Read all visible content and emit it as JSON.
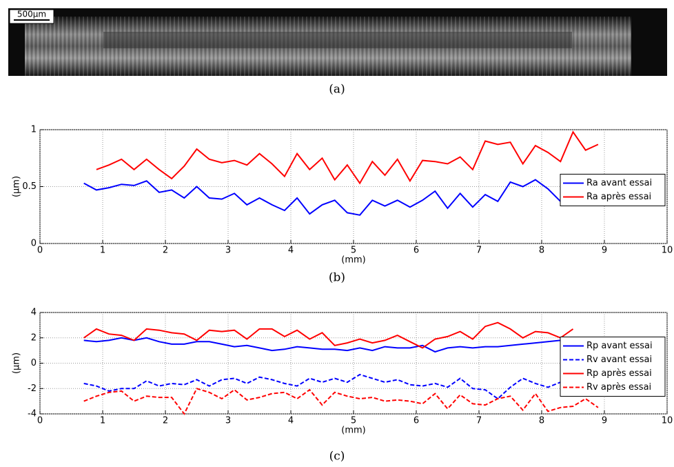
{
  "figure": {
    "scale_bar": "500µm",
    "captions": [
      "(a)",
      "(b)",
      "(c)"
    ]
  },
  "chart_data": [
    {
      "type": "line",
      "xlabel": "(mm)",
      "ylabel": "(µm)",
      "xlim": [
        0,
        10
      ],
      "ylim": [
        0,
        1
      ],
      "xticks": [
        0,
        1,
        2,
        3,
        4,
        5,
        6,
        7,
        8,
        9,
        10
      ],
      "yticks": [
        0,
        0.5,
        1
      ],
      "grid": true,
      "legend": "east",
      "x": [
        0.7,
        0.9,
        1.1,
        1.3,
        1.5,
        1.7,
        1.9,
        2.1,
        2.3,
        2.5,
        2.7,
        2.9,
        3.1,
        3.3,
        3.5,
        3.7,
        3.9,
        4.1,
        4.3,
        4.5,
        4.7,
        4.9,
        5.1,
        5.3,
        5.5,
        5.7,
        5.9,
        6.1,
        6.3,
        6.5,
        6.7,
        6.9,
        7.1,
        7.3,
        7.5,
        7.7,
        7.9,
        8.1,
        8.3,
        8.5,
        8.7,
        8.9
      ],
      "series": [
        {
          "name": "Ra avant essai",
          "color": "#0000ff",
          "dashed": false,
          "values": [
            0.53,
            0.47,
            0.49,
            0.52,
            0.51,
            0.55,
            0.45,
            0.47,
            0.4,
            0.5,
            0.4,
            0.39,
            0.44,
            0.34,
            0.4,
            0.34,
            0.29,
            0.4,
            0.26,
            0.34,
            0.38,
            0.27,
            0.25,
            0.38,
            0.33,
            0.38,
            0.32,
            0.38,
            0.46,
            0.31,
            0.44,
            0.32,
            0.43,
            0.37,
            0.54,
            0.5,
            0.56,
            0.48,
            0.37,
            null,
            null,
            null
          ]
        },
        {
          "name": "Ra après essai",
          "color": "#ff0000",
          "dashed": false,
          "values": [
            null,
            0.65,
            0.69,
            0.74,
            0.65,
            0.74,
            0.65,
            0.57,
            0.68,
            0.83,
            0.74,
            0.71,
            0.73,
            0.69,
            0.79,
            0.7,
            0.59,
            0.79,
            0.65,
            0.75,
            0.56,
            0.69,
            0.53,
            0.72,
            0.6,
            0.74,
            0.55,
            0.73,
            0.72,
            0.7,
            0.76,
            0.65,
            0.9,
            0.87,
            0.89,
            0.7,
            0.86,
            0.8,
            0.72,
            0.98,
            0.82,
            0.87
          ]
        }
      ]
    },
    {
      "type": "line",
      "xlabel": "(mm)",
      "ylabel": "(µm)",
      "xlim": [
        0,
        10
      ],
      "ylim": [
        -4,
        4
      ],
      "xticks": [
        0,
        1,
        2,
        3,
        4,
        5,
        6,
        7,
        8,
        9,
        10
      ],
      "yticks": [
        -4,
        -2,
        0,
        2,
        4
      ],
      "grid": true,
      "legend": "east",
      "x": [
        0.7,
        0.9,
        1.1,
        1.3,
        1.5,
        1.7,
        1.9,
        2.1,
        2.3,
        2.5,
        2.7,
        2.9,
        3.1,
        3.3,
        3.5,
        3.7,
        3.9,
        4.1,
        4.3,
        4.5,
        4.7,
        4.9,
        5.1,
        5.3,
        5.5,
        5.7,
        5.9,
        6.1,
        6.3,
        6.5,
        6.7,
        6.9,
        7.1,
        7.3,
        7.5,
        7.7,
        7.9,
        8.1,
        8.3,
        8.5,
        8.7,
        8.9
      ],
      "series": [
        {
          "name": "Rp avant essai",
          "color": "#0000ff",
          "dashed": false,
          "values": [
            1.8,
            1.7,
            1.8,
            2.0,
            1.8,
            2.0,
            1.7,
            1.5,
            1.5,
            1.7,
            1.7,
            1.5,
            1.3,
            1.4,
            1.2,
            1.0,
            1.1,
            1.3,
            1.2,
            1.1,
            1.1,
            1.0,
            1.2,
            1.0,
            1.3,
            1.2,
            1.2,
            1.4,
            0.9,
            1.2,
            1.3,
            1.2,
            1.3,
            1.3,
            1.4,
            1.5,
            1.6,
            1.7,
            1.8,
            1.7,
            null,
            null
          ]
        },
        {
          "name": "Rv avant essai",
          "color": "#0000ff",
          "dashed": true,
          "values": [
            -1.6,
            -1.8,
            -2.2,
            -2.0,
            -2.0,
            -1.4,
            -1.8,
            -1.6,
            -1.7,
            -1.3,
            -1.8,
            -1.3,
            -1.2,
            -1.6,
            -1.1,
            -1.3,
            -1.6,
            -1.8,
            -1.2,
            -1.5,
            -1.2,
            -1.5,
            -0.9,
            -1.2,
            -1.5,
            -1.3,
            -1.7,
            -1.8,
            -1.6,
            -1.9,
            -1.2,
            -2.0,
            -2.1,
            -2.8,
            -1.9,
            -1.2,
            -1.6,
            -1.9,
            -1.5,
            null,
            null,
            null
          ]
        },
        {
          "name": "Rp après essai",
          "color": "#ff0000",
          "dashed": false,
          "values": [
            2.0,
            2.7,
            2.3,
            2.2,
            1.8,
            2.7,
            2.6,
            2.4,
            2.3,
            1.8,
            2.6,
            2.5,
            2.6,
            1.9,
            2.7,
            2.7,
            2.1,
            2.6,
            1.9,
            2.4,
            1.4,
            1.6,
            1.9,
            1.6,
            1.8,
            2.2,
            1.7,
            1.2,
            1.9,
            2.1,
            2.5,
            1.9,
            2.9,
            3.2,
            2.7,
            2.0,
            2.5,
            2.4,
            2.0,
            2.7,
            null,
            null
          ]
        },
        {
          "name": "Rv après essai",
          "color": "#ff0000",
          "dashed": true,
          "values": [
            -3.0,
            -2.6,
            -2.3,
            -2.2,
            -3.0,
            -2.6,
            -2.7,
            -2.7,
            -4.0,
            -2.0,
            -2.3,
            -2.8,
            -2.1,
            -2.9,
            -2.7,
            -2.4,
            -2.3,
            -2.8,
            -2.1,
            -3.3,
            -2.3,
            -2.6,
            -2.8,
            -2.7,
            -3.0,
            -2.9,
            -3.0,
            -3.2,
            -2.4,
            -3.6,
            -2.5,
            -3.2,
            -3.3,
            -2.8,
            -2.6,
            -3.7,
            -2.4,
            -3.8,
            -3.5,
            -3.4,
            -2.8,
            -3.5
          ]
        }
      ]
    }
  ]
}
